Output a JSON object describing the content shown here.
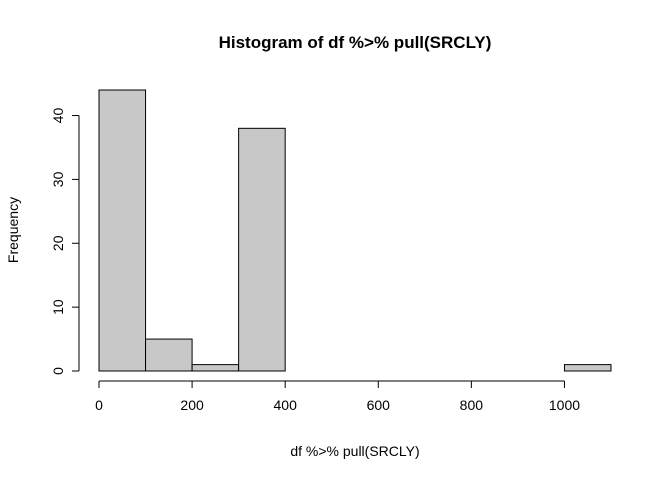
{
  "chart_data": {
    "type": "bar",
    "title": "Histogram of df %>% pull(SRCLY)",
    "xlabel": "df %>% pull(SRCLY)",
    "ylabel": "Frequency",
    "bins": [
      {
        "start": 0,
        "end": 100,
        "count": 44
      },
      {
        "start": 100,
        "end": 200,
        "count": 5
      },
      {
        "start": 200,
        "end": 300,
        "count": 1
      },
      {
        "start": 300,
        "end": 400,
        "count": 38
      },
      {
        "start": 400,
        "end": 500,
        "count": 0
      },
      {
        "start": 500,
        "end": 600,
        "count": 0
      },
      {
        "start": 600,
        "end": 700,
        "count": 0
      },
      {
        "start": 700,
        "end": 800,
        "count": 0
      },
      {
        "start": 800,
        "end": 900,
        "count": 0
      },
      {
        "start": 900,
        "end": 1000,
        "count": 0
      },
      {
        "start": 1000,
        "end": 1100,
        "count": 1
      }
    ],
    "xlim": [
      0,
      1100
    ],
    "ylim": [
      0,
      44
    ],
    "xticks": [
      0,
      200,
      400,
      600,
      800,
      1000
    ],
    "yticks": [
      0,
      10,
      20,
      30,
      40
    ],
    "bar_color": "#c8c8c8",
    "grid": false
  }
}
